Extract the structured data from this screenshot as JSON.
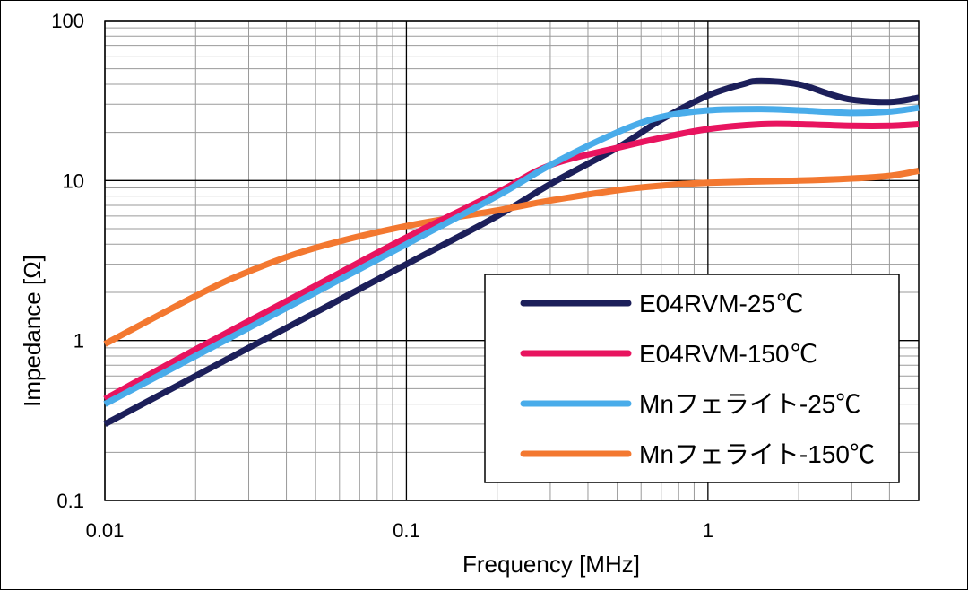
{
  "chart_data": {
    "type": "line",
    "xlabel": "Frequency [MHz]",
    "ylabel": "Impedance [Ω]",
    "x_scale": "log",
    "y_scale": "log",
    "xlim": [
      0.01,
      5
    ],
    "ylim": [
      0.1,
      100
    ],
    "x_ticks": [
      "0.01",
      "0.1",
      "1"
    ],
    "y_ticks": [
      "0.1",
      "1",
      "10",
      "100"
    ],
    "grid": true,
    "legend_position": "bottom-right",
    "series": [
      {
        "name": "E04RVM-25℃",
        "color": "#1c1f5a",
        "x": [
          0.01,
          0.02,
          0.05,
          0.1,
          0.2,
          0.3,
          0.5,
          0.7,
          1.0,
          1.3,
          1.5,
          2.0,
          2.5,
          3.0,
          4.0,
          5.0
        ],
        "y": [
          0.3,
          0.6,
          1.5,
          3.0,
          6.0,
          9.5,
          16,
          24,
          34,
          40,
          42,
          40,
          35,
          32,
          31,
          33
        ]
      },
      {
        "name": "E04RVM-150℃",
        "color": "#e8145f",
        "x": [
          0.01,
          0.02,
          0.05,
          0.1,
          0.2,
          0.3,
          0.5,
          0.7,
          1.0,
          1.5,
          2.0,
          3.0,
          4.0,
          5.0
        ],
        "y": [
          0.43,
          0.88,
          2.2,
          4.4,
          8.4,
          12.5,
          16,
          18.5,
          21,
          22.5,
          22.5,
          22,
          22,
          22.5
        ]
      },
      {
        "name": "Mnフェライト-25℃",
        "color": "#49acea",
        "x": [
          0.01,
          0.02,
          0.05,
          0.1,
          0.2,
          0.3,
          0.5,
          0.7,
          1.0,
          1.5,
          2.0,
          3.0,
          4.0,
          5.0
        ],
        "y": [
          0.4,
          0.8,
          2.0,
          4.0,
          8.0,
          12.5,
          20,
          25,
          27.5,
          28,
          27.5,
          26.5,
          27,
          28.5
        ]
      },
      {
        "name": "Mnフェライト-150℃",
        "color": "#f37830",
        "x": [
          0.01,
          0.02,
          0.03,
          0.05,
          0.1,
          0.2,
          0.3,
          0.5,
          0.7,
          1.0,
          2.0,
          3.0,
          4.0,
          5.0
        ],
        "y": [
          0.95,
          1.9,
          2.7,
          3.8,
          5.2,
          6.5,
          7.5,
          8.7,
          9.3,
          9.7,
          10.0,
          10.3,
          10.7,
          11.5
        ]
      }
    ]
  }
}
